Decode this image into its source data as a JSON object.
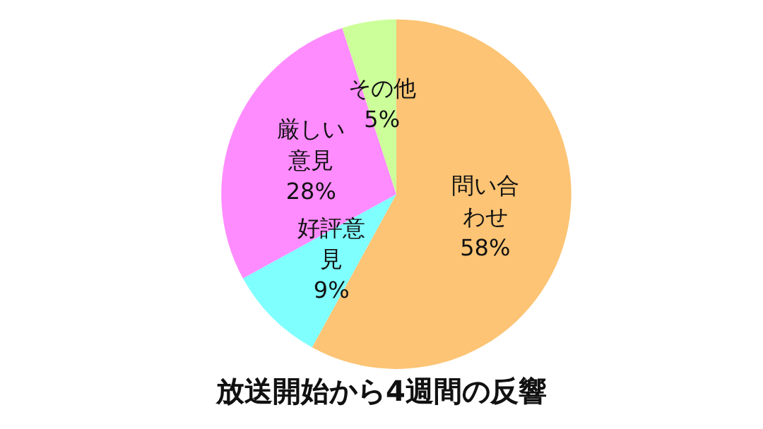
{
  "chart_data": {
    "type": "pie",
    "title": "放送開始から4週間の反響",
    "categories": [
      "問い合わせ",
      "好評意見",
      "厳しい意見",
      "その他"
    ],
    "values": [
      58,
      9,
      28,
      5
    ],
    "value_labels": [
      "58%",
      "9%",
      "28%",
      "5%"
    ],
    "colors": [
      "#fcc474",
      "#80ffff",
      "#ff8cff",
      "#ccff99"
    ],
    "legend": false
  }
}
